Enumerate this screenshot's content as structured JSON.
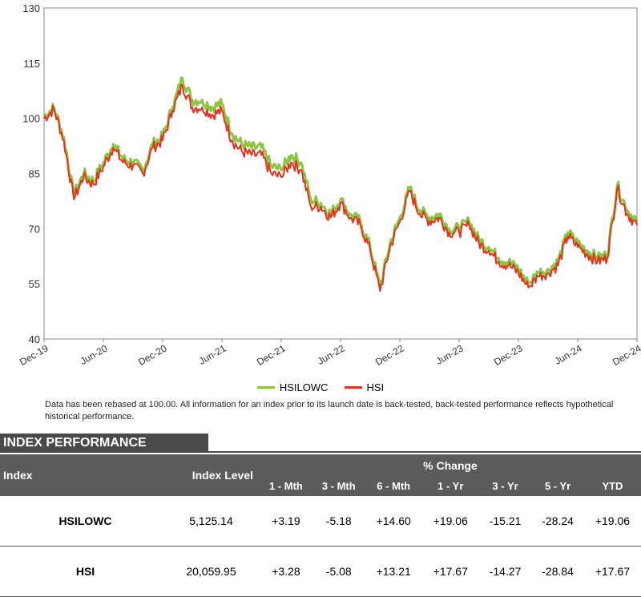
{
  "chart_data": {
    "type": "line",
    "ylim": [
      40,
      130
    ],
    "yticks": [
      40,
      55,
      70,
      85,
      100,
      115,
      130
    ],
    "xlim": [
      "2019-12",
      "2024-12"
    ],
    "xticks": [
      "Dec-19",
      "Jun-20",
      "Dec-20",
      "Jun-21",
      "Dec-21",
      "Jun-22",
      "Dec-22",
      "Jun-23",
      "Dec-23",
      "Jun-24",
      "Dec-24"
    ],
    "grid": false,
    "legend_position": "bottom",
    "series": [
      {
        "name": "HSILOWC",
        "color": "#8cc63f",
        "points": [
          [
            "2019-12",
            100.5
          ],
          [
            "2020-01",
            103
          ],
          [
            "2020-02",
            95
          ],
          [
            "2020-03",
            79
          ],
          [
            "2020-04",
            85
          ],
          [
            "2020-05",
            83
          ],
          [
            "2020-06",
            88
          ],
          [
            "2020-07",
            93
          ],
          [
            "2020-08",
            89
          ],
          [
            "2020-09",
            88
          ],
          [
            "2020-10",
            86
          ],
          [
            "2020-11",
            93
          ],
          [
            "2020-12",
            95
          ],
          [
            "2021-01",
            103
          ],
          [
            "2021-02",
            111
          ],
          [
            "2021-03",
            105
          ],
          [
            "2021-04",
            105
          ],
          [
            "2021-05",
            103
          ],
          [
            "2021-06",
            104
          ],
          [
            "2021-07",
            96
          ],
          [
            "2021-08",
            93
          ],
          [
            "2021-09",
            92
          ],
          [
            "2021-10",
            92
          ],
          [
            "2021-11",
            87
          ],
          [
            "2021-12",
            86
          ],
          [
            "2022-01",
            90
          ],
          [
            "2022-02",
            88
          ],
          [
            "2022-03",
            78
          ],
          [
            "2022-04",
            77
          ],
          [
            "2022-05",
            74
          ],
          [
            "2022-06",
            78
          ],
          [
            "2022-07",
            74
          ],
          [
            "2022-08",
            72
          ],
          [
            "2022-09",
            65
          ],
          [
            "2022-10",
            54
          ],
          [
            "2022-11",
            66
          ],
          [
            "2022-12",
            73
          ],
          [
            "2023-01",
            81
          ],
          [
            "2023-02",
            75
          ],
          [
            "2023-03",
            73
          ],
          [
            "2023-04",
            74
          ],
          [
            "2023-05",
            70
          ],
          [
            "2023-06",
            70
          ],
          [
            "2023-07",
            72
          ],
          [
            "2023-08",
            67
          ],
          [
            "2023-09",
            65
          ],
          [
            "2023-10",
            62
          ],
          [
            "2023-11",
            61
          ],
          [
            "2023-12",
            59
          ],
          [
            "2024-01",
            55
          ],
          [
            "2024-02",
            58
          ],
          [
            "2024-03",
            59
          ],
          [
            "2024-04",
            61
          ],
          [
            "2024-05",
            69
          ],
          [
            "2024-06",
            66
          ],
          [
            "2024-07",
            64
          ],
          [
            "2024-08",
            62
          ],
          [
            "2024-09",
            63
          ],
          [
            "2024-10",
            82
          ],
          [
            "2024-11",
            75
          ],
          [
            "2024-12",
            72
          ]
        ]
      },
      {
        "name": "HSI",
        "color": "#e8321e",
        "points": [
          [
            "2019-12",
            100
          ],
          [
            "2020-01",
            102.5
          ],
          [
            "2020-02",
            94
          ],
          [
            "2020-03",
            78
          ],
          [
            "2020-04",
            84
          ],
          [
            "2020-05",
            82
          ],
          [
            "2020-06",
            87
          ],
          [
            "2020-07",
            92
          ],
          [
            "2020-08",
            88
          ],
          [
            "2020-09",
            87
          ],
          [
            "2020-10",
            85
          ],
          [
            "2020-11",
            92
          ],
          [
            "2020-12",
            94
          ],
          [
            "2021-01",
            102
          ],
          [
            "2021-02",
            109
          ],
          [
            "2021-03",
            103
          ],
          [
            "2021-04",
            103
          ],
          [
            "2021-05",
            101
          ],
          [
            "2021-06",
            102
          ],
          [
            "2021-07",
            94
          ],
          [
            "2021-08",
            91
          ],
          [
            "2021-09",
            90
          ],
          [
            "2021-10",
            90
          ],
          [
            "2021-11",
            85
          ],
          [
            "2021-12",
            84
          ],
          [
            "2022-01",
            88
          ],
          [
            "2022-02",
            86
          ],
          [
            "2022-03",
            76
          ],
          [
            "2022-04",
            76
          ],
          [
            "2022-05",
            73
          ],
          [
            "2022-06",
            77
          ],
          [
            "2022-07",
            73
          ],
          [
            "2022-08",
            71
          ],
          [
            "2022-09",
            64
          ],
          [
            "2022-10",
            53
          ],
          [
            "2022-11",
            65
          ],
          [
            "2022-12",
            72
          ],
          [
            "2023-01",
            80
          ],
          [
            "2023-02",
            74
          ],
          [
            "2023-03",
            72
          ],
          [
            "2023-04",
            73
          ],
          [
            "2023-05",
            69
          ],
          [
            "2023-06",
            69
          ],
          [
            "2023-07",
            71
          ],
          [
            "2023-08",
            66
          ],
          [
            "2023-09",
            64
          ],
          [
            "2023-10",
            61
          ],
          [
            "2023-11",
            60
          ],
          [
            "2023-12",
            58
          ],
          [
            "2024-01",
            54
          ],
          [
            "2024-02",
            57
          ],
          [
            "2024-03",
            58
          ],
          [
            "2024-04",
            60
          ],
          [
            "2024-05",
            68
          ],
          [
            "2024-06",
            65
          ],
          [
            "2024-07",
            63
          ],
          [
            "2024-08",
            61
          ],
          [
            "2024-09",
            62
          ],
          [
            "2024-10",
            81
          ],
          [
            "2024-11",
            74
          ],
          [
            "2024-12",
            71
          ]
        ]
      }
    ]
  },
  "note": "Data has been rebased at 100.00. All information for an index prior to its launch date is back-tested, back-tested performance reflects hypothetical historical performance.",
  "performance": {
    "section_title": "INDEX PERFORMANCE",
    "headers": {
      "index": "Index",
      "level": "Index Level",
      "pct_change": "% Change",
      "periods": [
        "1 - Mth",
        "3 - Mth",
        "6 - Mth",
        "1 - Yr",
        "3 - Yr",
        "5 - Yr",
        "YTD"
      ]
    },
    "rows": [
      {
        "name": "HSILOWC",
        "level": "5,125.14",
        "changes": [
          "+3.19",
          "-5.18",
          "+14.60",
          "+19.06",
          "-15.21",
          "-28.24",
          "+19.06"
        ]
      },
      {
        "name": "HSI",
        "level": "20,059.95",
        "changes": [
          "+3.28",
          "-5.08",
          "+13.21",
          "+17.67",
          "-14.27",
          "-28.84",
          "+17.67"
        ]
      }
    ]
  }
}
